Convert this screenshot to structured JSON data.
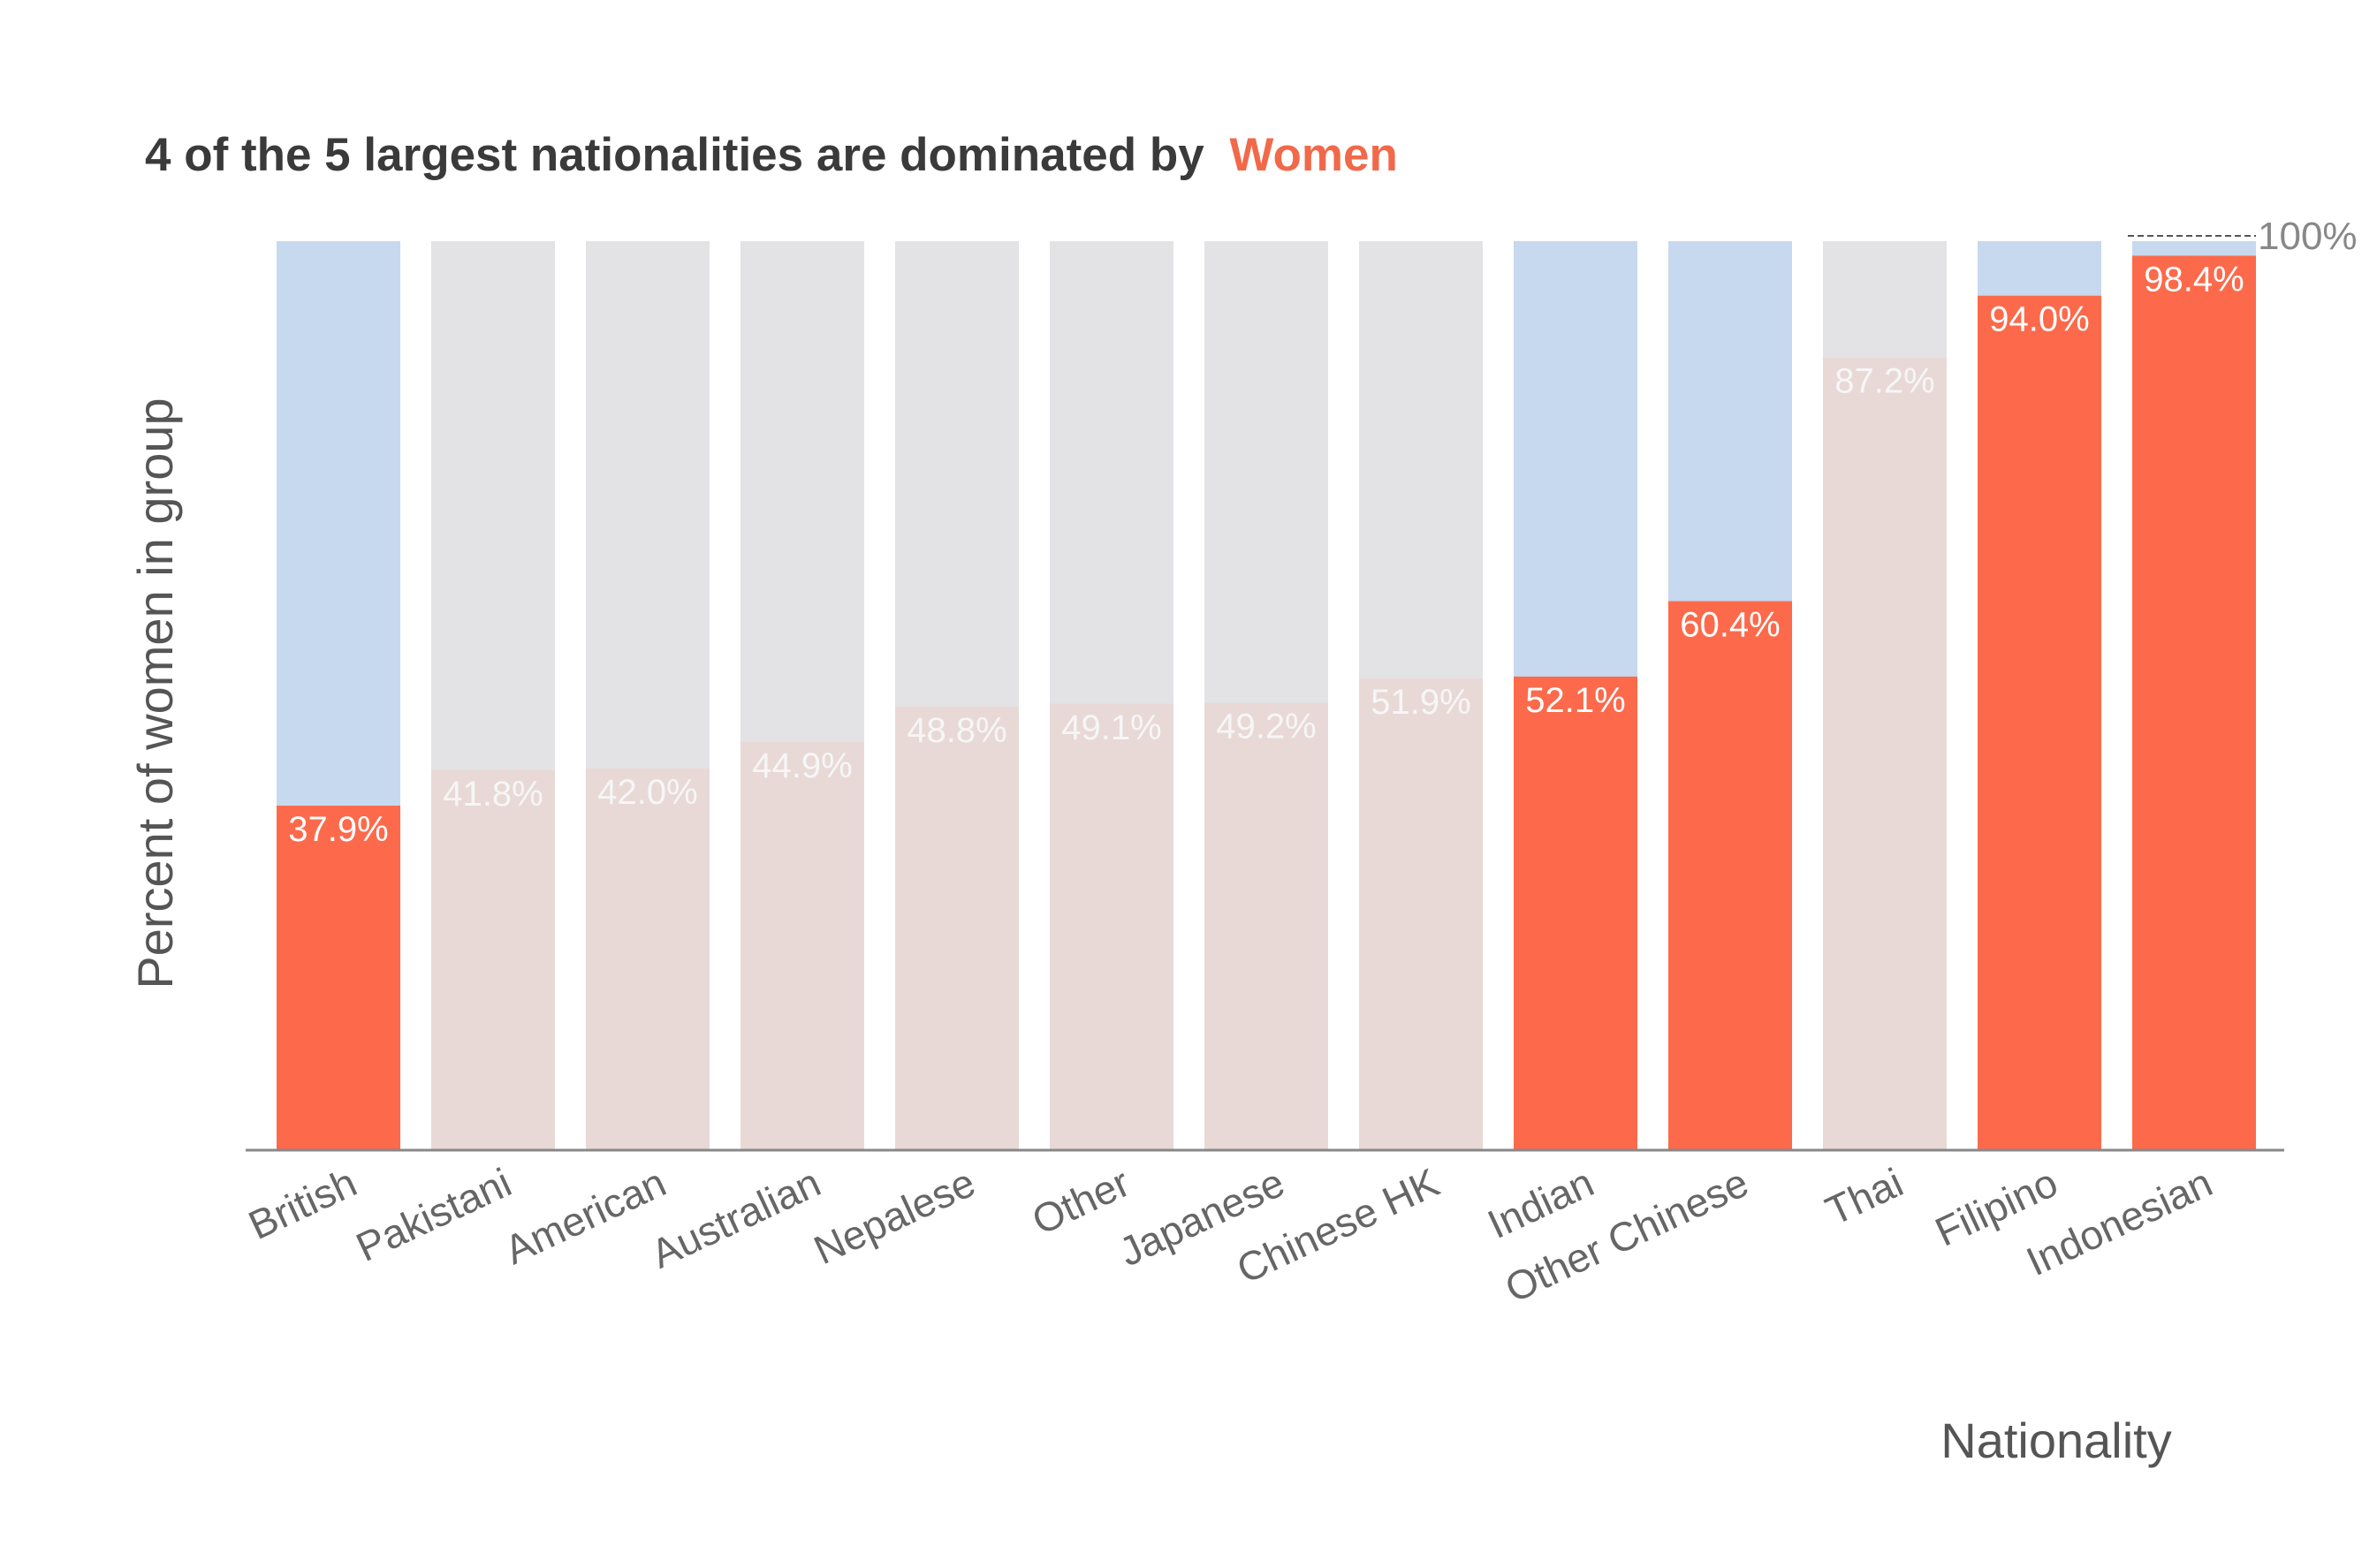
{
  "chart_data": {
    "type": "bar",
    "title": "4 of the 5 largest nationalities are dominated by",
    "title_highlight": "Women",
    "xlabel": "Nationality",
    "ylabel": "Percent of women in group",
    "ylim": [
      0,
      100
    ],
    "grid": false,
    "reference_line": {
      "value": 100,
      "label": "100%"
    },
    "categories": [
      "British",
      "Pakistani",
      "American",
      "Australian",
      "Nepalese",
      "Other",
      "Japanese",
      "Chinese HK",
      "Indian",
      "Other Chinese",
      "Thai",
      "Filipino",
      "Indonesian"
    ],
    "values": [
      37.9,
      41.8,
      42.0,
      44.9,
      48.8,
      49.1,
      49.2,
      51.9,
      52.1,
      60.4,
      87.2,
      94.0,
      98.4
    ],
    "value_labels": [
      "37.9%",
      "41.8%",
      "42.0%",
      "44.9%",
      "48.8%",
      "49.1%",
      "49.2%",
      "51.9%",
      "52.1%",
      "60.4%",
      "87.2%",
      "94.0%",
      "98.4%"
    ],
    "highlighted": [
      true,
      false,
      false,
      false,
      false,
      false,
      false,
      false,
      true,
      true,
      false,
      true,
      true
    ],
    "colors": {
      "highlight_bar": "#fc6a4b",
      "highlight_background": "#c6d9ee",
      "muted_bar": "#e8d9d7",
      "muted_background": "#e3e3e5",
      "highlight_label": "#ffffff",
      "muted_label": "#f6f6f6",
      "title": "#3a3a3a",
      "title_highlight": "#f1694a",
      "axis": "#888888"
    }
  }
}
